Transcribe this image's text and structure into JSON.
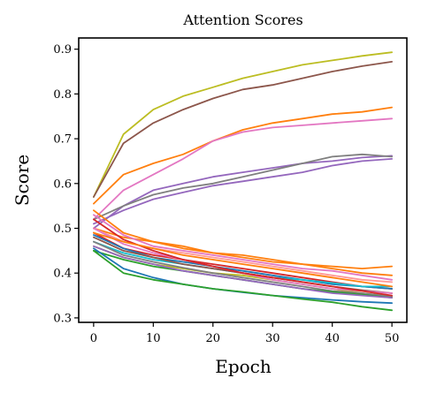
{
  "chart_data": {
    "type": "line",
    "title": "Attention Scores",
    "xlabel": "Epoch",
    "ylabel": "Score",
    "xlim": [
      -2.5,
      52.5
    ],
    "ylim": [
      0.29,
      0.925
    ],
    "x_ticks": [
      0,
      10,
      20,
      30,
      40,
      50
    ],
    "y_ticks": [
      0.3,
      0.4,
      0.5,
      0.6,
      0.7,
      0.8,
      0.9
    ],
    "x_tick_labels": [
      "0",
      "10",
      "20",
      "30",
      "40",
      "50"
    ],
    "y_tick_labels": [
      "0.3",
      "0.4",
      "0.5",
      "0.6",
      "0.7",
      "0.8",
      "0.9"
    ],
    "grid": false,
    "legend": "none",
    "x": [
      0,
      5,
      10,
      15,
      20,
      25,
      30,
      35,
      40,
      45,
      50
    ],
    "series": [
      {
        "color": "#bcbd22",
        "values": [
          0.57,
          0.71,
          0.765,
          0.795,
          0.815,
          0.835,
          0.85,
          0.865,
          0.875,
          0.885,
          0.893
        ]
      },
      {
        "color": "#8c564b",
        "values": [
          0.57,
          0.69,
          0.735,
          0.765,
          0.79,
          0.81,
          0.82,
          0.835,
          0.85,
          0.862,
          0.872
        ]
      },
      {
        "color": "#ff7f0e",
        "values": [
          0.555,
          0.62,
          0.645,
          0.665,
          0.695,
          0.72,
          0.735,
          0.745,
          0.755,
          0.76,
          0.77
        ]
      },
      {
        "color": "#e377c2",
        "values": [
          0.52,
          0.585,
          0.62,
          0.655,
          0.695,
          0.715,
          0.725,
          0.73,
          0.735,
          0.74,
          0.745
        ]
      },
      {
        "color": "#9467bd",
        "values": [
          0.5,
          0.55,
          0.585,
          0.6,
          0.615,
          0.625,
          0.635,
          0.645,
          0.65,
          0.658,
          0.662
        ]
      },
      {
        "color": "#7f7f7f",
        "values": [
          0.52,
          0.55,
          0.575,
          0.59,
          0.6,
          0.615,
          0.63,
          0.645,
          0.66,
          0.665,
          0.66
        ]
      },
      {
        "color": "#9467bd",
        "values": [
          0.51,
          0.54,
          0.565,
          0.58,
          0.595,
          0.605,
          0.615,
          0.625,
          0.64,
          0.65,
          0.655
        ]
      },
      {
        "color": "#ff7f0e",
        "values": [
          0.54,
          0.49,
          0.47,
          0.46,
          0.445,
          0.44,
          0.43,
          0.42,
          0.415,
          0.41,
          0.415
        ]
      },
      {
        "color": "#ff7f0e",
        "values": [
          0.5,
          0.48,
          0.47,
          0.455,
          0.445,
          0.435,
          0.425,
          0.42,
          0.41,
          0.4,
          0.395
        ]
      },
      {
        "color": "#e377c2",
        "values": [
          0.53,
          0.485,
          0.46,
          0.45,
          0.44,
          0.43,
          0.42,
          0.41,
          0.405,
          0.395,
          0.385
        ]
      },
      {
        "color": "#ff9896",
        "values": [
          0.5,
          0.47,
          0.455,
          0.445,
          0.435,
          0.425,
          0.415,
          0.405,
          0.395,
          0.385,
          0.38
        ]
      },
      {
        "color": "#d62728",
        "values": [
          0.49,
          0.455,
          0.44,
          0.43,
          0.42,
          0.41,
          0.4,
          0.39,
          0.38,
          0.37,
          0.365
        ]
      },
      {
        "color": "#1f77b4",
        "values": [
          0.485,
          0.455,
          0.435,
          0.425,
          0.415,
          0.405,
          0.395,
          0.385,
          0.375,
          0.37,
          0.365
        ]
      },
      {
        "color": "#17becf",
        "values": [
          0.47,
          0.445,
          0.43,
          0.42,
          0.41,
          0.4,
          0.39,
          0.385,
          0.378,
          0.37,
          0.37
        ]
      },
      {
        "color": "#8c564b",
        "values": [
          0.48,
          0.45,
          0.435,
          0.42,
          0.41,
          0.4,
          0.39,
          0.38,
          0.37,
          0.362,
          0.355
        ]
      },
      {
        "color": "#bcbd22",
        "values": [
          0.46,
          0.435,
          0.42,
          0.41,
          0.4,
          0.395,
          0.385,
          0.375,
          0.365,
          0.355,
          0.348
        ]
      },
      {
        "color": "#7f7f7f",
        "values": [
          0.47,
          0.44,
          0.425,
          0.412,
          0.4,
          0.39,
          0.38,
          0.37,
          0.36,
          0.355,
          0.348
        ]
      },
      {
        "color": "#2ca02c",
        "values": [
          0.45,
          0.43,
          0.415,
          0.405,
          0.395,
          0.385,
          0.375,
          0.365,
          0.358,
          0.352,
          0.345
        ]
      },
      {
        "color": "#9467bd",
        "values": [
          0.46,
          0.435,
          0.42,
          0.405,
          0.395,
          0.385,
          0.375,
          0.365,
          0.355,
          0.35,
          0.345
        ]
      },
      {
        "color": "#e377c2",
        "values": [
          0.5,
          0.465,
          0.445,
          0.43,
          0.415,
          0.4,
          0.385,
          0.375,
          0.365,
          0.36,
          0.355
        ]
      },
      {
        "color": "#1f77b4",
        "values": [
          0.455,
          0.41,
          0.39,
          0.375,
          0.365,
          0.357,
          0.35,
          0.345,
          0.34,
          0.336,
          0.333
        ]
      },
      {
        "color": "#2ca02c",
        "values": [
          0.45,
          0.4,
          0.385,
          0.375,
          0.365,
          0.358,
          0.35,
          0.342,
          0.335,
          0.325,
          0.317
        ]
      },
      {
        "color": "#d62728",
        "values": [
          0.52,
          0.475,
          0.45,
          0.43,
          0.415,
          0.4,
          0.39,
          0.38,
          0.37,
          0.36,
          0.35
        ]
      },
      {
        "color": "#ff7f0e",
        "values": [
          0.49,
          0.47,
          0.455,
          0.44,
          0.43,
          0.42,
          0.41,
          0.4,
          0.39,
          0.38,
          0.37
        ]
      }
    ]
  }
}
